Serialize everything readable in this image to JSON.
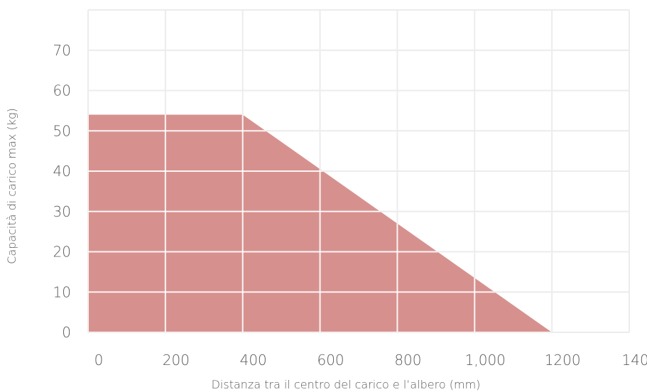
{
  "chart_data": {
    "type": "area",
    "title": "",
    "xlabel": "Distanza tra il centro del carico e l’albero (mm)",
    "ylabel": "Capacità di carico max (kg)",
    "xlim": [
      0,
      1400
    ],
    "ylim": [
      0,
      80
    ],
    "x_ticks": [
      "0",
      "200",
      "400",
      "600",
      "800",
      "1,000",
      "1200",
      "1400"
    ],
    "y_ticks": [
      "0",
      "10",
      "20",
      "30",
      "40",
      "50",
      "60",
      "70"
    ],
    "grid": true,
    "fill_color": "#d6918f",
    "grid_color": "#ececec",
    "series": [
      {
        "x": [
          0,
          400,
          1200,
          1200,
          0
        ],
        "y": [
          54,
          54,
          0,
          0,
          0
        ]
      }
    ]
  }
}
